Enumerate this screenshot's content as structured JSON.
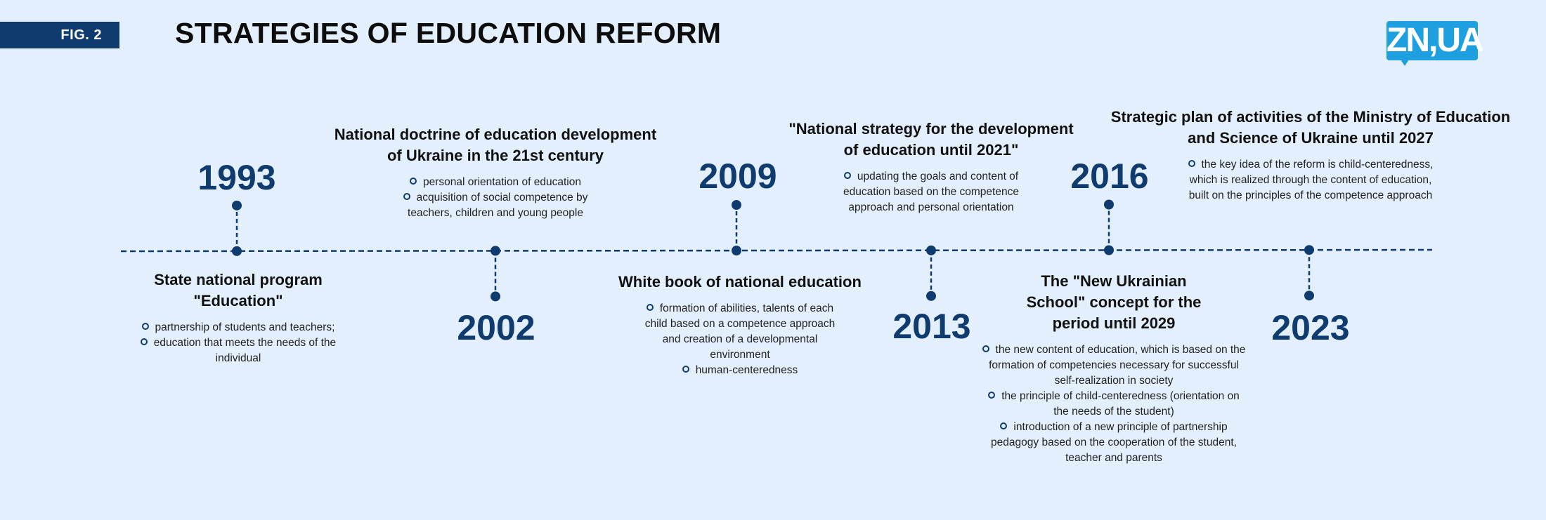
{
  "header": {
    "fig_label": "FIG. 2",
    "title": "STRATEGIES OF EDUCATION REFORM",
    "logo_text": "ZN,UA"
  },
  "colors": {
    "background": "#e3effc",
    "accent": "#0f3b6e",
    "logo": "#1e9fe0"
  },
  "events": [
    {
      "year": "1993",
      "title": "State national program \"Education\"",
      "bullets": [
        "partnership of students and teachers;",
        "education that meets the needs of the individual"
      ]
    },
    {
      "year": "2002",
      "title": "National doctrine of education development of Ukraine in the 21st century",
      "bullets": [
        "personal orientation of education",
        "acquisition of social competence by teachers, children and young people"
      ]
    },
    {
      "year": "2009",
      "title": "White book of national education",
      "bullets": [
        "formation of abilities, talents of each child based on a competence approach and creation of a developmental environment",
        "human-centeredness"
      ]
    },
    {
      "year": "2013",
      "title": "\"National strategy for the development of education until 2021\"",
      "bullets": [
        "updating the goals and content of education based on the competence approach and personal orientation"
      ]
    },
    {
      "year": "2016",
      "title": "The \"New Ukrainian School\" concept for the period until 2029",
      "bullets": [
        "the new content of education, which is based on the formation of competencies necessary for successful self-realization in society",
        "the principle of child-centeredness (orientation on the needs of the student)",
        "introduction of a new principle of partnership pedagogy based on the cooperation of the student, teacher and parents"
      ]
    },
    {
      "year": "2023",
      "title": "Strategic plan of activities of the Ministry of Education and Science of Ukraine until 2027",
      "bullets": [
        "the key idea of the reform is child-centeredness, which is realized through the content of education, built on the principles of the competence approach"
      ]
    }
  ]
}
